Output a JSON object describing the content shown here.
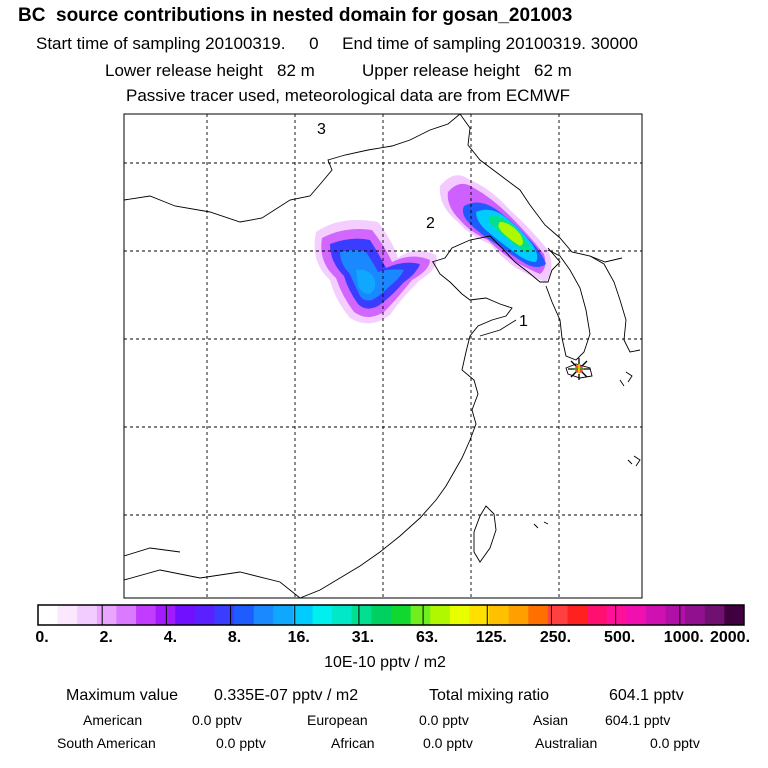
{
  "header": {
    "title": "BC  source contributions in nested domain for gosan_201003",
    "sampling": "Start time of sampling 20100319.     0     End time of sampling 20100319. 30000",
    "release": "Lower release height   82 m          Upper release height   62 m",
    "tracer": "Passive tracer used, meteorological data are from ECMWF"
  },
  "map": {
    "region_labels": [
      "3",
      "2",
      "1"
    ],
    "station_marker": "star-marker"
  },
  "colorbar": {
    "labels": [
      "0.",
      "2.",
      "4.",
      "8.",
      "16.",
      "31.",
      "63.",
      "125.",
      "250.",
      "500.",
      "1000.",
      "2000."
    ],
    "colors": [
      "#ffffff",
      "#fbe8ff",
      "#f3ccff",
      "#eaa6ff",
      "#d97aff",
      "#c23cff",
      "#a21bff",
      "#7010ff",
      "#5a20ff",
      "#3a3cff",
      "#1e5cff",
      "#1a88ff",
      "#10a8ff",
      "#00ccff",
      "#00f0f0",
      "#00e8c8",
      "#00e090",
      "#00d060",
      "#10d830",
      "#70ee20",
      "#b0f800",
      "#e8ff00",
      "#ffe000",
      "#ffc000",
      "#ffa000",
      "#ff7000",
      "#ff4040",
      "#ff2020",
      "#ff1070",
      "#ff1098",
      "#f010b0",
      "#d010b0",
      "#b010a8",
      "#901090",
      "#701070",
      "#400040"
    ],
    "units": "10E-10 pptv / m2"
  },
  "summary": {
    "max_label": "Maximum value",
    "max_value": "0.335E-07 pptv / m2",
    "total_label": "Total mixing ratio",
    "total_value": "604.1 pptv",
    "regions": [
      {
        "name": "American",
        "value": "0.0 pptv"
      },
      {
        "name": "European",
        "value": "0.0 pptv"
      },
      {
        "name": "Asian",
        "value": "604.1 pptv"
      },
      {
        "name": "South American",
        "value": "0.0 pptv"
      },
      {
        "name": "African",
        "value": "0.0 pptv"
      },
      {
        "name": "Australian",
        "value": "0.0 pptv"
      }
    ]
  }
}
